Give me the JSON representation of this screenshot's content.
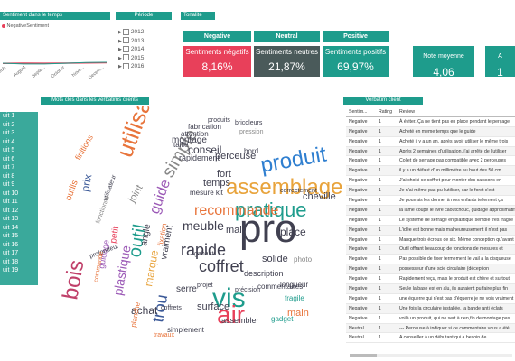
{
  "sentiment_chart": {
    "title": "Sentiment dans le temps",
    "legend_label": "NegativeSentiment",
    "negative_color": "#e8405a",
    "positive_color": "#1e9c8c",
    "months": [
      "July",
      "August",
      "Septe...",
      "October",
      "Nove...",
      "Decem..."
    ],
    "chart_data": {
      "type": "line",
      "x": [
        "July",
        "August",
        "September",
        "October",
        "November",
        "December"
      ],
      "series": [
        {
          "name": "NegativeSentiment",
          "values": [
            0.06,
            0.07,
            0.065,
            0.07,
            0.08,
            0.085
          ]
        }
      ]
    }
  },
  "period": {
    "title": "Période",
    "years": [
      "2012",
      "2013",
      "2014",
      "2015",
      "2016"
    ]
  },
  "tonality": {
    "title": "Tonalité",
    "columns": [
      {
        "label": "Negative",
        "sub_label": "Sentiments négatifs",
        "value": "8,16%"
      },
      {
        "label": "Neutral",
        "sub_label": "Sentiments neutres",
        "value": "21,87%"
      },
      {
        "label": "Positive",
        "sub_label": "Sentiments positifs",
        "value": "69,97%"
      }
    ]
  },
  "cards": [
    {
      "label": "Note moyenne",
      "value": "4,06"
    },
    {
      "label": "A",
      "value": "1"
    }
  ],
  "keywords": {
    "title": "Mots clés dans les verbatims clients"
  },
  "products": [
    "uit 1",
    "uit 2",
    "uit 3",
    "uit 4",
    "uit 5",
    "uit 6",
    "uit 7",
    "uit 8",
    "uit 9",
    "uit 10",
    "uit 11",
    "uit 12",
    "uit 13",
    "uit 14",
    "uit 15",
    "uit 16",
    "uit 17",
    "uit 18",
    "uit 19"
  ],
  "verbatim": {
    "title": "Verbatim client",
    "columns": [
      "Sentim...",
      "Rating",
      "Review"
    ],
    "rows": [
      [
        "Negative",
        "1",
        "À éviter. Ça ne tient pas en place pendant le perçage"
      ],
      [
        "Negative",
        "1",
        "Acheté en meme temps que le guide"
      ],
      [
        "Negative",
        "1",
        "Acheté il y a un an, après avoir utiliser le même trois"
      ],
      [
        "Negative",
        "1",
        "Après 2 semaines d'utilisation, j'ai arrêté de l'utiliser"
      ],
      [
        "Negative",
        "1",
        "Collet de serrage pas compatible avec 2 perceuses"
      ],
      [
        "Negative",
        "1",
        "il y a un défaut d'un millimètre au bout des 50 cm"
      ],
      [
        "Negative",
        "1",
        "J'ai choisi ce coffret pour monter des caissons en"
      ],
      [
        "Negative",
        "1",
        "Je n'ai même pas pu l'utiliser, car le foret s'est"
      ],
      [
        "Negative",
        "1",
        "Je pourrais les donner à mes enfants tellement ça"
      ],
      [
        "Negative",
        "1",
        "la lame coupe le livre caoutchouc, guidage approximatif"
      ],
      [
        "Negative",
        "1",
        "Le système de serrage en plastique semble très fragile"
      ],
      [
        "Negative",
        "1",
        "L'idée est bonne mais malheureusement il n'est pas"
      ],
      [
        "Negative",
        "1",
        "Manque trois écrous de six. Même conception qu'avant"
      ],
      [
        "Negative",
        "1",
        "Outil offrant beaucoup de fonctions de mesures et"
      ],
      [
        "Negative",
        "1",
        "Pas possible de fixer fermement le vail à la disqueuse"
      ],
      [
        "Negative",
        "1",
        "possesseur d'une scie circulaire (déception"
      ],
      [
        "Negative",
        "1",
        "Rapidement reçu, mais le produit est chère et surtout"
      ],
      [
        "Negative",
        "1",
        "Seule la base est en alu, ils auraient pu faire plus fin"
      ],
      [
        "Negative",
        "1",
        "une équerre qui n'est pas d'équerre je ne vois vraiment"
      ],
      [
        "Negative",
        "1",
        "Une fois la circulaire installée, la bande anti éclats"
      ],
      [
        "Negative",
        "1",
        "voilà un produit, qui ne sert à rien,fin de montage pas"
      ],
      [
        "Neutral",
        "1",
        "--- Perceuse à indiquer si ce commentaire vous a été"
      ],
      [
        "Neutral",
        "1",
        "A conseiller à un débutant qui a besoin de"
      ]
    ]
  },
  "wordcloud": [
    {
      "t": "pro",
      "c": "#404050"
    },
    {
      "t": "utilisation",
      "c": "#e8743b"
    },
    {
      "t": "assemblage",
      "c": "#e8a33b"
    },
    {
      "t": "pratique",
      "c": "#1e9c8c"
    },
    {
      "t": "produit",
      "c": "#2f7fd0"
    },
    {
      "t": "vis",
      "c": "#1e9c8c"
    },
    {
      "t": "air",
      "c": "#e8405a"
    },
    {
      "t": "recommande",
      "c": "#e8743b"
    },
    {
      "t": "bois",
      "c": "#c0406a"
    },
    {
      "t": "rapide",
      "c": "#404050"
    },
    {
      "t": "coffret",
      "c": "#404050"
    },
    {
      "t": "outil",
      "c": "#1e9c8c"
    },
    {
      "t": "trou",
      "c": "#3b5998"
    },
    {
      "t": "simple",
      "c": "#888"
    },
    {
      "t": "guide",
      "c": "#9b59b6"
    },
    {
      "t": "temps",
      "c": "#404050"
    },
    {
      "t": "fort",
      "c": "#404050"
    },
    {
      "t": "meuble",
      "c": "#404050"
    },
    {
      "t": "conseil",
      "c": "#404050"
    },
    {
      "t": "place",
      "c": "#404050"
    },
    {
      "t": "main",
      "c": "#e8743b"
    },
    {
      "t": "solide",
      "c": "#404050"
    },
    {
      "t": "plastique",
      "c": "#9b59b6"
    },
    {
      "t": "cheville",
      "c": "#404050"
    },
    {
      "t": "marque",
      "c": "#e8a33b"
    },
    {
      "t": "mal",
      "c": "#404050"
    },
    {
      "t": "montage",
      "c": "#404050"
    },
    {
      "t": "surface",
      "c": "#404050"
    },
    {
      "t": "achat",
      "c": "#404050"
    },
    {
      "t": "fabrication",
      "c": "#404050"
    },
    {
      "t": "serre",
      "c": "#404050"
    },
    {
      "t": "prix",
      "c": "#3b5998"
    },
    {
      "t": "perceuse",
      "c": "#404050"
    },
    {
      "t": "assembler",
      "c": "#404050"
    },
    {
      "t": "photo",
      "c": "#888"
    },
    {
      "t": "bord",
      "c": "#404050"
    },
    {
      "t": "description",
      "c": "#404050"
    },
    {
      "t": "fragile",
      "c": "#1e9c8c"
    },
    {
      "t": "gadget",
      "c": "#1e9c8c"
    },
    {
      "t": "fixation",
      "c": "#e8743b"
    },
    {
      "t": "vraiment",
      "c": "#404050"
    },
    {
      "t": "angle",
      "c": "#404050"
    },
    {
      "t": "petit",
      "c": "#e8405a"
    },
    {
      "t": "taille",
      "c": "#404050"
    },
    {
      "t": "attention",
      "c": "#404050"
    },
    {
      "t": "rapidement",
      "c": "#404050"
    },
    {
      "t": "joint",
      "c": "#888"
    },
    {
      "t": "mesure kit",
      "c": "#404050"
    },
    {
      "t": "longueur",
      "c": "#404050"
    },
    {
      "t": "simplement",
      "c": "#404050"
    },
    {
      "t": "outils",
      "c": "#e8743b"
    },
    {
      "t": "planche",
      "c": "#e8743b"
    },
    {
      "t": "produits",
      "c": "#404050"
    },
    {
      "t": "bricoleurs",
      "c": "#404050"
    },
    {
      "t": "pression",
      "c": "#888"
    },
    {
      "t": "correctement",
      "c": "#404050"
    },
    {
      "t": "commentaires",
      "c": "#404050"
    },
    {
      "t": "finitions",
      "c": "#e8743b"
    },
    {
      "t": "utilisateur",
      "c": "#404050"
    },
    {
      "t": "fonctionne",
      "c": "#888"
    },
    {
      "t": "guidage",
      "c": "#9b59b6"
    },
    {
      "t": "gabarit",
      "c": "#404050"
    },
    {
      "t": "précision",
      "c": "#404050"
    },
    {
      "t": "profondeur",
      "c": "#404050"
    },
    {
      "t": "commande",
      "c": "#e8743b"
    },
    {
      "t": "coffrets",
      "c": "#404050"
    },
    {
      "t": "projet",
      "c": "#404050"
    },
    {
      "t": "travaux",
      "c": "#e8743b"
    }
  ]
}
